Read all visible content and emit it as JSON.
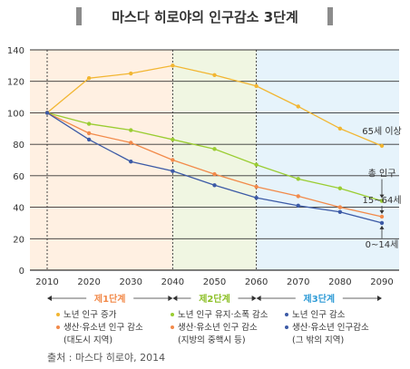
{
  "title": "마스다 히로야의 인구감소 3단계",
  "source": "출처 : 마스다 히로야, 2014",
  "colors": {
    "elderly": "#f2b632",
    "total": "#9acd32",
    "working": "#f28a4a",
    "young": "#3c5aa6",
    "stage1_bg": "#fff0e2",
    "stage2_bg": "#f0f6e2",
    "stage3_bg": "#e6f3fb",
    "stage1_text": "#f28a4a",
    "stage2_text": "#8cbf26",
    "stage3_text": "#2f9bd6"
  },
  "chart_data": {
    "type": "line",
    "x": [
      2010,
      2020,
      2030,
      2040,
      2050,
      2060,
      2070,
      2080,
      2090
    ],
    "ylim": [
      0,
      140
    ],
    "yticks": [
      0,
      20,
      40,
      60,
      80,
      100,
      120,
      140
    ],
    "grid": true,
    "series": [
      {
        "key": "elderly",
        "name": "65세 이상",
        "values": [
          100,
          122,
          125,
          130,
          124,
          117,
          104,
          90,
          79
        ]
      },
      {
        "key": "total",
        "name": "총 인구",
        "values": [
          100,
          93,
          89,
          83,
          77,
          67,
          58,
          52,
          44
        ]
      },
      {
        "key": "working",
        "name": "15~64세",
        "values": [
          100,
          87,
          81,
          70,
          61,
          53,
          47,
          40,
          34
        ]
      },
      {
        "key": "young",
        "name": "0~14세",
        "values": [
          100,
          83,
          69,
          63,
          54,
          46,
          41,
          37,
          30
        ]
      }
    ],
    "stages": [
      {
        "label": "제1단계",
        "from": 2010,
        "to": 2040
      },
      {
        "label": "제2단계",
        "from": 2040,
        "to": 2060
      },
      {
        "label": "제3단계",
        "from": 2060,
        "to": 2090
      }
    ]
  },
  "legend": {
    "stage1": [
      "노년 인구 증가",
      "생산·유소년 인구 감소",
      "(대도시 지역)"
    ],
    "stage2": [
      "노년 인구 유지·소폭 감소",
      "생산·유소년 인구 감소",
      "(지방의 중핵시 등)"
    ],
    "stage3": [
      "노년 인구 감소",
      "생산·유소년 인구감소",
      "(그 밖의 지역)"
    ]
  }
}
